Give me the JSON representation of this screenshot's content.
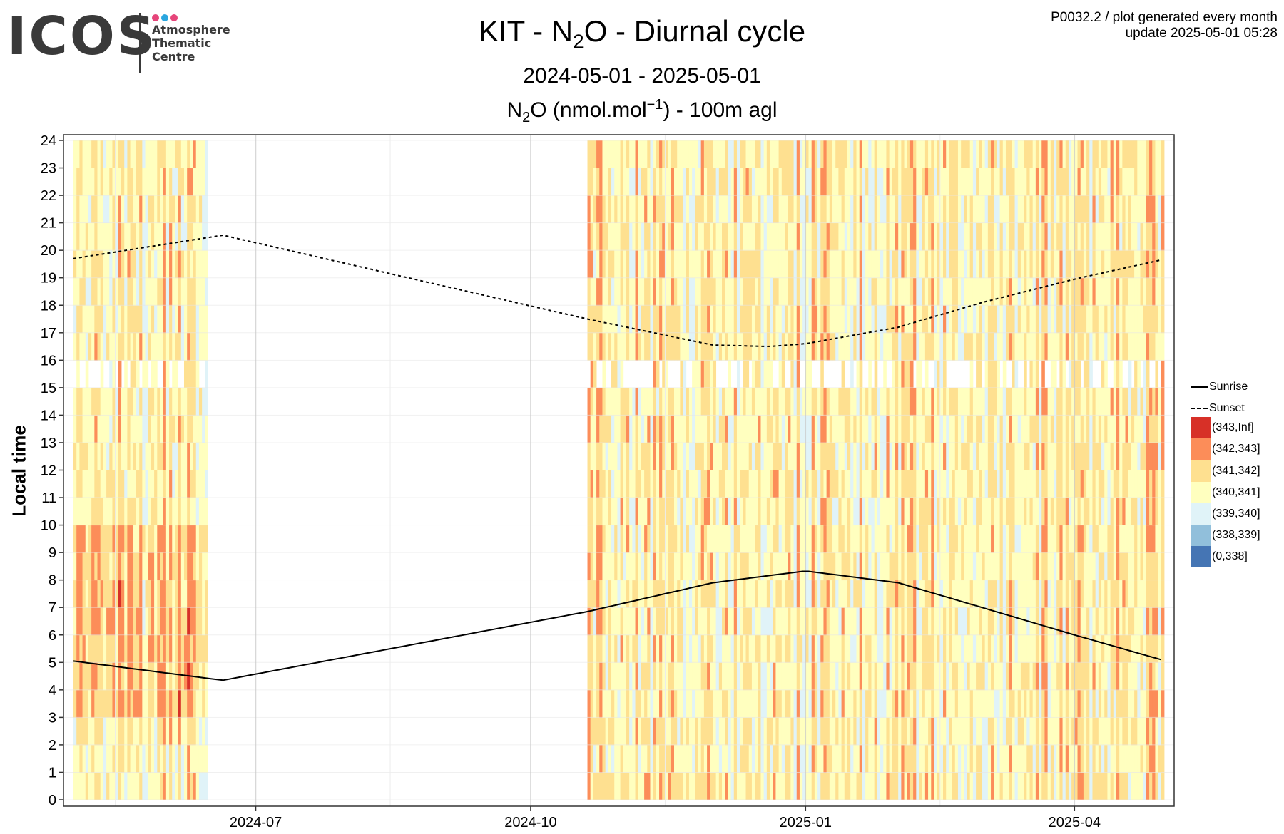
{
  "logo": {
    "text": "ICOS",
    "subtitle_lines": [
      "Atmosphere",
      "Thematic",
      "Centre"
    ],
    "dot_colors": [
      "#e6457a",
      "#2aa6df",
      "#e6457a"
    ]
  },
  "header": {
    "title_pre": "KIT - N",
    "title_sub": "2",
    "title_post": "O - Diurnal cycle",
    "date_range": "2024-05-01 - 2025-05-01",
    "series_pre": "N",
    "series_sub": "2",
    "series_mid": "O (nmol.mol",
    "series_sup": "−1",
    "series_post": ") - 100m agl",
    "meta_line1": "P0032.2 / plot generated every month",
    "meta_line2": "update  2025-05-01 05:28"
  },
  "chart_data": {
    "type": "heatmap",
    "ylabel": "Local time",
    "x_ticks": [
      "2024-07",
      "2024-10",
      "2025-01",
      "2025-04"
    ],
    "y_ticks": [
      "0",
      "1",
      "2",
      "3",
      "4",
      "5",
      "6",
      "7",
      "8",
      "9",
      "10",
      "11",
      "12",
      "13",
      "14",
      "15",
      "16",
      "17",
      "18",
      "19",
      "20",
      "21",
      "22",
      "23",
      "24"
    ],
    "xlim": [
      "2024-05-01",
      "2025-05-01"
    ],
    "ylim": [
      0,
      24
    ],
    "data_periods": [
      {
        "start": "2024-05-01",
        "end": "2024-06-14"
      },
      {
        "start": "2024-10-20",
        "end": "2025-04-30"
      }
    ],
    "sunrise": [
      {
        "date": "2024-05-01",
        "hour": 5.05
      },
      {
        "date": "2024-06-20",
        "hour": 4.35
      },
      {
        "date": "2024-10-20",
        "hour": 6.85
      },
      {
        "date": "2024-12-01",
        "hour": 7.9
      },
      {
        "date": "2025-01-01",
        "hour": 8.33
      },
      {
        "date": "2025-02-01",
        "hour": 7.9
      },
      {
        "date": "2025-03-01",
        "hour": 7.0
      },
      {
        "date": "2025-04-01",
        "hour": 6.0
      },
      {
        "date": "2025-04-30",
        "hour": 5.1
      }
    ],
    "sunset": [
      {
        "date": "2024-05-01",
        "hour": 19.7
      },
      {
        "date": "2024-06-20",
        "hour": 20.55
      },
      {
        "date": "2024-10-20",
        "hour": 17.5
      },
      {
        "date": "2024-12-01",
        "hour": 16.55
      },
      {
        "date": "2024-12-20",
        "hour": 16.5
      },
      {
        "date": "2025-01-01",
        "hour": 16.6
      },
      {
        "date": "2025-02-01",
        "hour": 17.2
      },
      {
        "date": "2025-03-01",
        "hour": 18.1
      },
      {
        "date": "2025-04-01",
        "hour": 18.95
      },
      {
        "date": "2025-04-30",
        "hour": 19.65
      }
    ],
    "legend": [
      {
        "label": "Sunrise",
        "style": "solid"
      },
      {
        "label": "Sunset",
        "style": "dashed"
      },
      {
        "label": "(343,Inf]",
        "color": "#d73027"
      },
      {
        "label": "(342,343]",
        "color": "#fc8d59"
      },
      {
        "label": "(341,342]",
        "color": "#fee090"
      },
      {
        "label": "(340,341]",
        "color": "#ffffbf"
      },
      {
        "label": "(339,340]",
        "color": "#e0f3f8"
      },
      {
        "label": "(338,339]",
        "color": "#91bfdb"
      },
      {
        "label": "(0,338]",
        "color": "#4575b4"
      }
    ]
  }
}
